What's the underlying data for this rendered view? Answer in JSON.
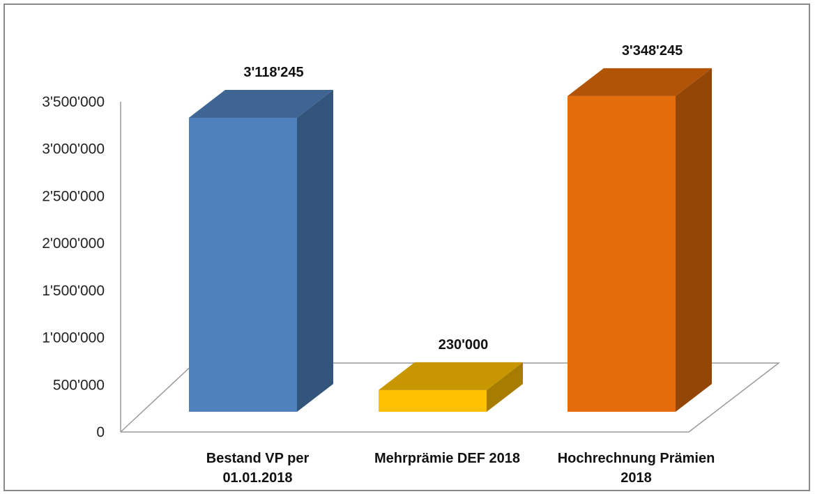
{
  "chart_data": {
    "type": "bar",
    "categories": [
      [
        "Bestand VP per",
        "01.01.2018"
      ],
      [
        "Mehrprämie DEF 2018"
      ],
      [
        "Hochrechnung Prämien",
        "2018"
      ]
    ],
    "values": [
      3118245,
      230000,
      3348245
    ],
    "data_labels": [
      "3'118'245",
      "230'000",
      "3'348'245"
    ],
    "colors": [
      "#4F81BD",
      "#FFC000",
      "#E46C0A"
    ],
    "yticks": [
      "0",
      "500'000",
      "1'000'000",
      "1'500'000",
      "2'000'000",
      "2'500'000",
      "3'000'000",
      "3'500'000"
    ],
    "ylim": [
      0,
      3500000
    ],
    "title": "",
    "xlabel": "",
    "ylabel": "",
    "grid": false,
    "legend": "none",
    "style": "3d-columns"
  }
}
